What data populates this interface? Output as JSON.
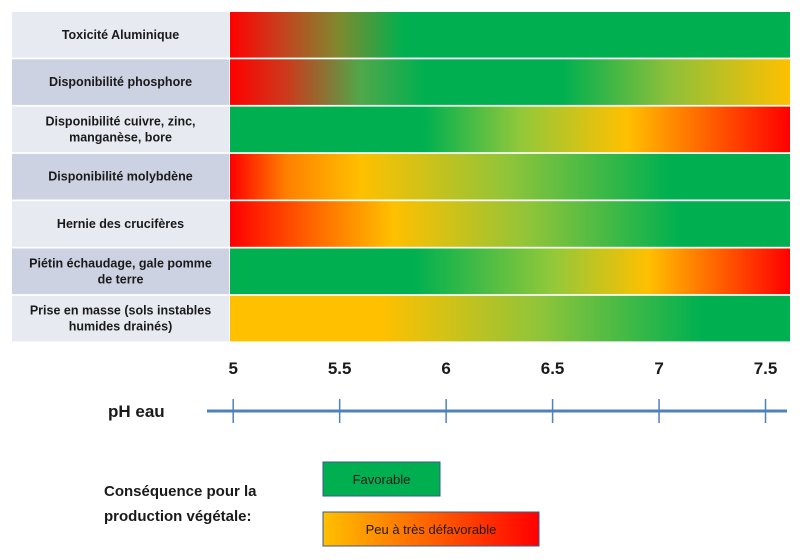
{
  "chart_data": {
    "type": "heatmap",
    "xlabel": "pH eau",
    "xlim": [
      4.985,
      7.615
    ],
    "x_ticks": [
      "5",
      "5.5",
      "6",
      "6.5",
      "7",
      "7.5"
    ],
    "x_tick_values": [
      5,
      5.5,
      6,
      6.5,
      7,
      7.5
    ],
    "colors": {
      "favorable": "#00b050",
      "yellow_green": "#92d050",
      "intermediate": "#ffc000",
      "unfavorable": "#ff0000",
      "row_odd": "#e8eaf2",
      "row_even": "#cdd2e2",
      "axis": "#4f81bd"
    },
    "rows": [
      {
        "label": [
          "Toxicité Aluminique"
        ],
        "gradient": [
          {
            "ph": 4.985,
            "color": "#ff0000"
          },
          {
            "ph": 5.2,
            "color": "#cc3a1c"
          },
          {
            "ph": 5.5,
            "color": "#7e8a2e"
          },
          {
            "ph": 5.8,
            "color": "#00b050"
          },
          {
            "ph": 7.615,
            "color": "#00b050"
          }
        ]
      },
      {
        "label": [
          "Disponibilité phosphore"
        ],
        "gradient": [
          {
            "ph": 4.985,
            "color": "#ff0000"
          },
          {
            "ph": 5.25,
            "color": "#cc3a1c"
          },
          {
            "ph": 5.6,
            "color": "#4fa84a"
          },
          {
            "ph": 5.9,
            "color": "#00b050"
          },
          {
            "ph": 6.55,
            "color": "#00b050"
          },
          {
            "ph": 7.05,
            "color": "#8ec03a"
          },
          {
            "ph": 7.615,
            "color": "#ffc000"
          }
        ]
      },
      {
        "label": [
          "Disponibilité  cuivre, zinc,",
          "manganèse, bore"
        ],
        "gradient": [
          {
            "ph": 4.985,
            "color": "#00b050"
          },
          {
            "ph": 5.9,
            "color": "#00b050"
          },
          {
            "ph": 6.35,
            "color": "#92c83a"
          },
          {
            "ph": 6.85,
            "color": "#ffc000"
          },
          {
            "ph": 7.615,
            "color": "#ff0000"
          }
        ]
      },
      {
        "label": [
          "Disponibilité molybdène"
        ],
        "gradient": [
          {
            "ph": 4.985,
            "color": "#ff0000"
          },
          {
            "ph": 5.25,
            "color": "#ff8000"
          },
          {
            "ph": 5.6,
            "color": "#ffc000"
          },
          {
            "ph": 6.3,
            "color": "#8ec43a"
          },
          {
            "ph": 7.05,
            "color": "#00b050"
          },
          {
            "ph": 7.615,
            "color": "#00b050"
          }
        ]
      },
      {
        "label": [
          "Hernie des crucifères"
        ],
        "gradient": [
          {
            "ph": 4.985,
            "color": "#ff0000"
          },
          {
            "ph": 5.35,
            "color": "#ff6000"
          },
          {
            "ph": 5.75,
            "color": "#ffc000"
          },
          {
            "ph": 6.4,
            "color": "#8ec43a"
          },
          {
            "ph": 7.1,
            "color": "#00b050"
          },
          {
            "ph": 7.615,
            "color": "#00b050"
          }
        ]
      },
      {
        "label": [
          "Piétin échaudage, gale  pomme",
          "de terre"
        ],
        "gradient": [
          {
            "ph": 4.985,
            "color": "#00b050"
          },
          {
            "ph": 5.85,
            "color": "#00b050"
          },
          {
            "ph": 6.5,
            "color": "#92c83a"
          },
          {
            "ph": 6.95,
            "color": "#ffc000"
          },
          {
            "ph": 7.615,
            "color": "#ff0000"
          }
        ]
      },
      {
        "label": [
          "Prise en masse (sols instables",
          "humides drainés)"
        ],
        "gradient": [
          {
            "ph": 4.985,
            "color": "#ffc000"
          },
          {
            "ph": 5.7,
            "color": "#ffc000"
          },
          {
            "ph": 6.45,
            "color": "#8ec43a"
          },
          {
            "ph": 7.2,
            "color": "#00b050"
          },
          {
            "ph": 7.615,
            "color": "#00b050"
          }
        ]
      }
    ],
    "legend": {
      "title": [
        "Conséquence pour la",
        "production végétale:"
      ],
      "items": [
        {
          "label": "Favorable",
          "colors": [
            "#00b050",
            "#00b050"
          ]
        },
        {
          "label": "Peu à très défavorable",
          "colors": [
            "#ffc000",
            "#ff0000"
          ]
        }
      ]
    }
  }
}
